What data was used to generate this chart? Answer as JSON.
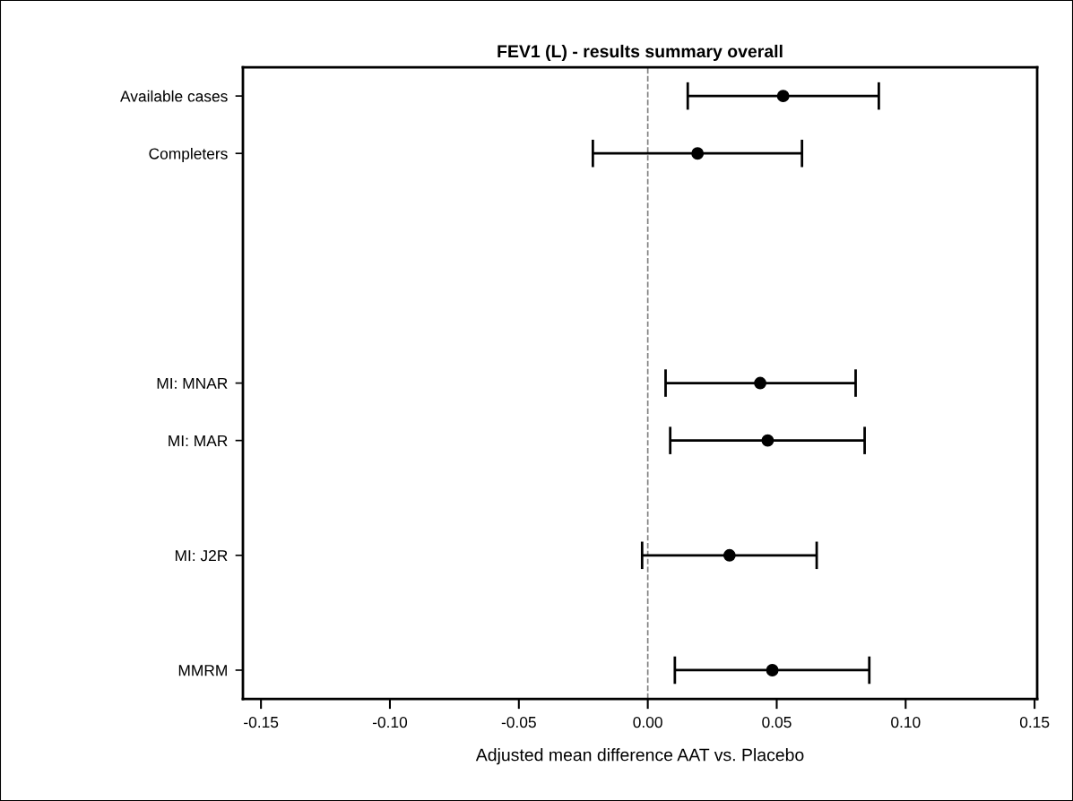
{
  "chart_data": {
    "type": "scatter",
    "orientation": "horizontal",
    "title": "FEV1 (L) - results summary overall",
    "xlabel": "Adjusted mean difference AAT vs. Placebo",
    "categories": [
      "Available cases",
      "Completers",
      null,
      null,
      null,
      "MI: MNAR",
      "MI: MAR",
      null,
      "MI: J2R",
      null,
      "MMRM"
    ],
    "series": [
      {
        "color": "#000000",
        "values": [
          0.0525,
          0.0193,
          null,
          null,
          null,
          0.0436,
          0.0465,
          null,
          0.0317,
          null,
          0.0483
        ],
        "errors": [
          [
            0.0155,
            0.0896
          ],
          [
            -0.0213,
            0.0598
          ],
          null,
          null,
          null,
          [
            0.0069,
            0.0806
          ],
          [
            0.0087,
            0.0841
          ],
          null,
          [
            -0.0022,
            0.0655
          ],
          null,
          [
            0.0105,
            0.0859
          ]
        ]
      }
    ],
    "xlim": [
      -0.157,
      0.151
    ],
    "xticks": [
      {
        "value": -0.15,
        "label": "-0.15"
      },
      {
        "value": -0.1,
        "label": "-0.10"
      },
      {
        "value": -0.05,
        "label": "-0.05"
      },
      {
        "value": 0,
        "label": "0.00"
      },
      {
        "value": 0.05,
        "label": "0.05"
      },
      {
        "value": 0.1,
        "label": "0.10"
      },
      {
        "value": 0.15,
        "label": "0.15"
      }
    ],
    "ref_lines": [
      {
        "axis": "x",
        "value": 0,
        "color": "#808080",
        "line_style": "dashed"
      }
    ],
    "marker": "circle",
    "grid": false,
    "legend": false
  }
}
